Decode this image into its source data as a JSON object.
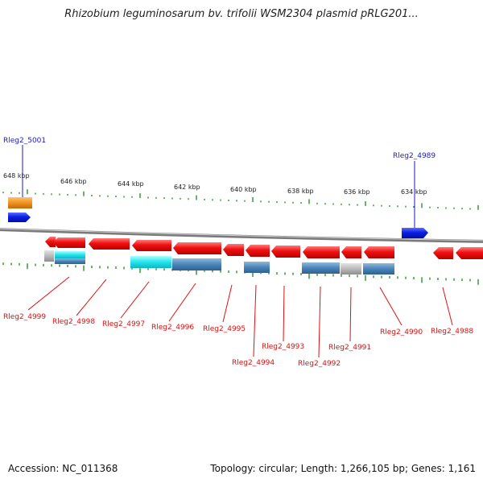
{
  "title": "Rhizobium leguminosarum bv. trifolii WSM2304 plasmid pRLG201...",
  "accession": "Accession: NC_011368",
  "summary": "Topology: circular; Length: 1,266,105 bp; Genes: 1,161",
  "ticks": [
    "648 kbp",
    "646 kbp",
    "644 kbp",
    "642 kbp",
    "640 kbp",
    "638 kbp",
    "636 kbp",
    "634 kbp"
  ],
  "top_labels": [
    "Rleg2_5001",
    "Rleg2_4989"
  ],
  "bottom_labels": [
    "Rleg2_4999",
    "Rleg2_4998",
    "Rleg2_4997",
    "Rleg2_4996",
    "Rleg2_4995",
    "Rleg2_4994",
    "Rleg2_4993",
    "Rleg2_4992",
    "Rleg2_4991",
    "Rleg2_4990",
    "Rleg2_4988"
  ],
  "colors": {
    "forward": "#0b1fe6",
    "reverse": "#ee1111",
    "rna": "#f2921e",
    "steel": "#4a84b8",
    "cyan": "#22e4ee",
    "gray": "#b9b9b9",
    "tick": "#1a8a1a",
    "top_label": "#1a1acc",
    "bottom_label": "#dd1111",
    "backbone": "#777777"
  }
}
